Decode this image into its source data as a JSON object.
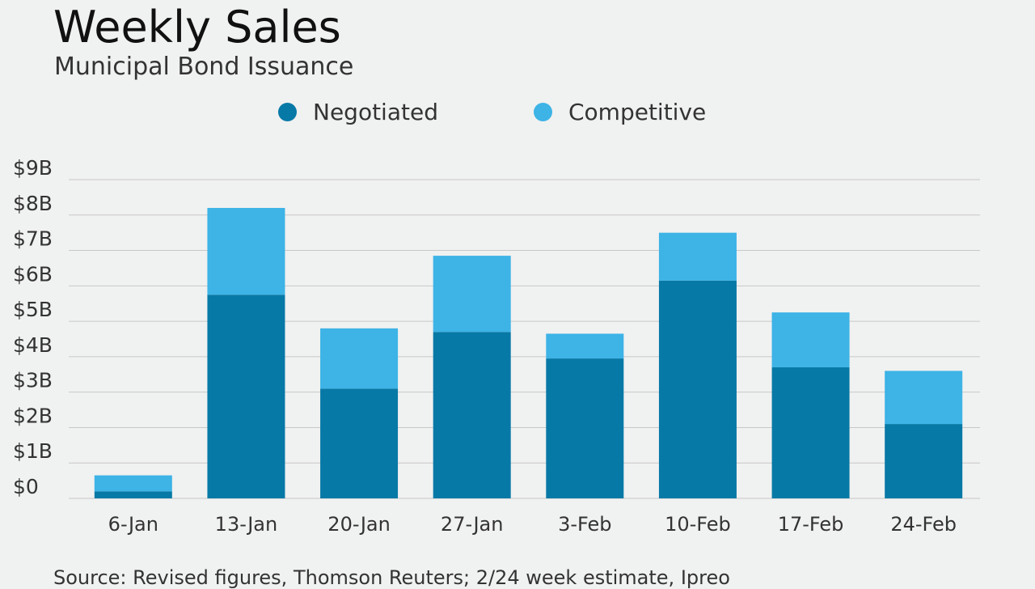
{
  "title": "Weekly Sales",
  "subtitle": "Municipal Bond Issuance",
  "source": "Source: Revised figures, Thomson Reuters; 2/24 week estimate, Ipreo",
  "colors": {
    "negotiated": "#0779a6",
    "competitive": "#3db3e6",
    "grid": "#c8c8c8",
    "axis_text": "#333333"
  },
  "chart_data": {
    "type": "bar",
    "stacked": true,
    "categories": [
      "6-Jan",
      "13-Jan",
      "20-Jan",
      "27-Jan",
      "3-Feb",
      "10-Feb",
      "17-Feb",
      "24-Feb"
    ],
    "series": [
      {
        "name": "Negotiated",
        "values": [
          0.2,
          5.75,
          3.1,
          4.7,
          3.95,
          6.15,
          3.7,
          2.1
        ]
      },
      {
        "name": "Competitive",
        "values": [
          0.45,
          2.45,
          1.7,
          2.15,
          0.7,
          1.35,
          1.55,
          1.5
        ]
      }
    ],
    "ylim": [
      0,
      9
    ],
    "yticks": [
      "$0",
      "$1B",
      "$2B",
      "$3B",
      "$4B",
      "$5B",
      "$6B",
      "$7B",
      "$8B",
      "$9B"
    ],
    "grid": true,
    "legend_position": "top"
  }
}
